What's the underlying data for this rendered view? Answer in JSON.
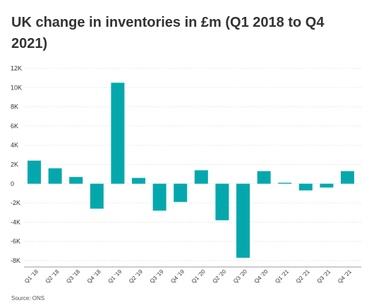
{
  "chart_data": {
    "type": "bar",
    "title": "UK change in inventories in £m (Q1 2018 to Q4 2021)",
    "categories": [
      "Q1 '18",
      "Q2 '18",
      "Q3 '18",
      "Q4 '18",
      "Q1 '19",
      "Q2 '19",
      "Q3 '19",
      "Q4 '19",
      "Q1 '20",
      "Q2 '20",
      "Q3 '20",
      "Q4 '20",
      "Q1 '21",
      "Q2 '21",
      "Q3 '21",
      "Q4 '21"
    ],
    "values": [
      2400,
      1600,
      700,
      -2600,
      10500,
      600,
      -2800,
      -1900,
      1400,
      -3800,
      -7700,
      1300,
      100,
      -700,
      -400,
      1300
    ],
    "yticks": [
      "12K",
      "10K",
      "8K",
      "6K",
      "4K",
      "2K",
      "0",
      "-2K",
      "-4K",
      "-6K",
      "-8K"
    ],
    "ytick_values": [
      12000,
      10000,
      8000,
      6000,
      4000,
      2000,
      0,
      -2000,
      -4000,
      -6000,
      -8000
    ],
    "ylim": [
      -8000,
      12000
    ],
    "xlabel": "",
    "ylabel": "",
    "grid": true,
    "bar_color": "#04a8ac",
    "source": "Source: ONS"
  }
}
